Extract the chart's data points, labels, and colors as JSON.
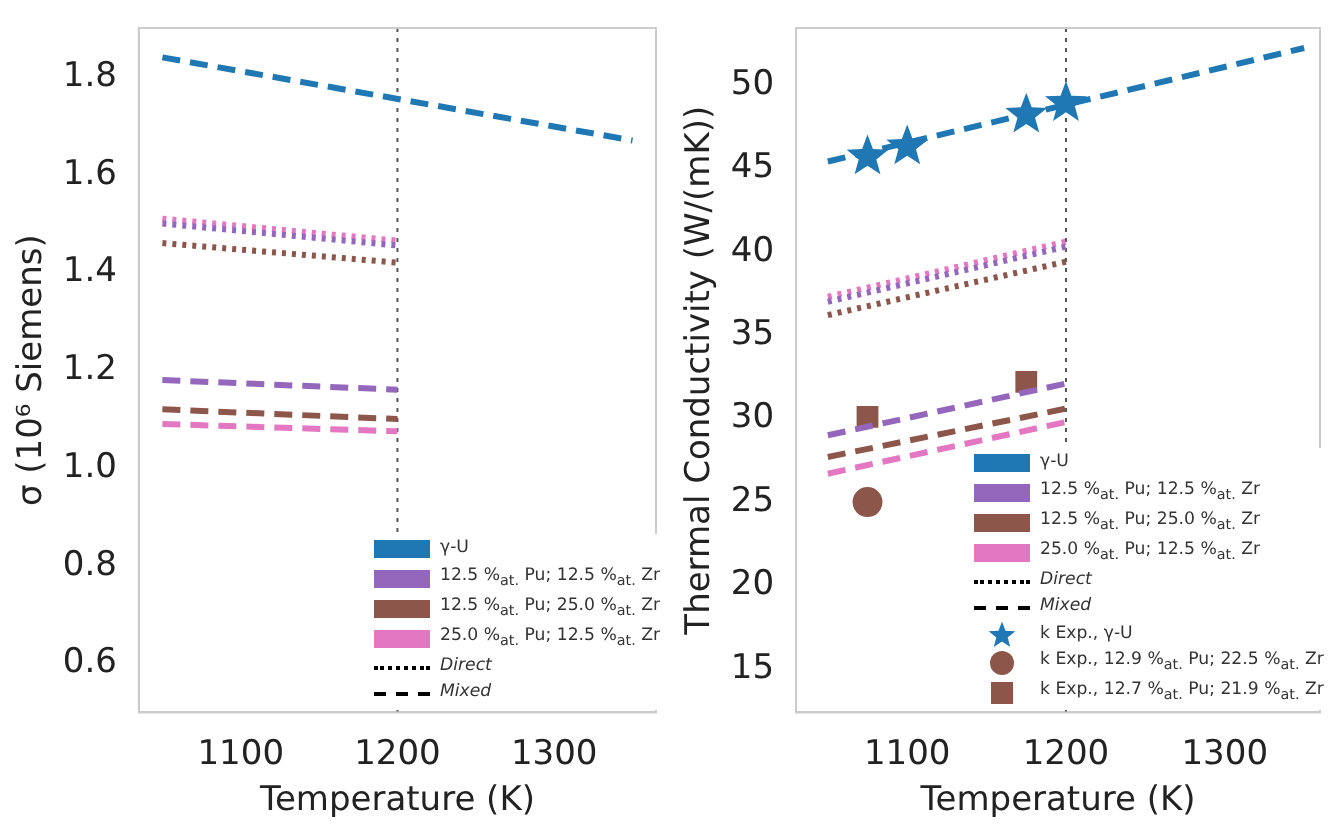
{
  "chart_data": [
    {
      "type": "line",
      "xlabel": "Temperature (K)",
      "ylabel": "σ (10⁶ Siemens)",
      "xlim": [
        1035,
        1365
      ],
      "xticks": [
        1100,
        1200,
        1300
      ],
      "ylim": [
        0.5,
        1.9
      ],
      "yticks": [
        0.6,
        0.8,
        {
          "value": 1,
          "label": "1.0"
        },
        1.2,
        1.4,
        1.6,
        1.8
      ],
      "grid": false,
      "legend": "bottom right",
      "annotations": [
        "Direct",
        "Mixed"
      ],
      "ref_lines": [
        {
          "axis": "x",
          "value": 1200,
          "color": "#555555",
          "line_style": "dotted"
        }
      ],
      "series": [
        {
          "color": "#9467bd",
          "line_style": "dotted",
          "x": [
            1050,
            1200
          ],
          "values": [
            1.5,
            1.455
          ]
        },
        {
          "color": "#8c564b",
          "line_style": "dotted",
          "x": [
            1050,
            1200
          ],
          "values": [
            1.46,
            1.42
          ]
        },
        {
          "color": "#e377c2",
          "line_style": "dotted",
          "x": [
            1050,
            1200
          ],
          "values": [
            1.51,
            1.465
          ]
        },
        {
          "name": "γ-U",
          "color": "#1f77b4",
          "line_style": "dashed",
          "x": [
            1050,
            1350
          ],
          "values": [
            1.84,
            1.67
          ]
        },
        {
          "name": "12.5 %$_{at.}$ Pu; 12.5 %$_{at.}$ Zr",
          "color": "#9467bd",
          "line_style": "dashed",
          "x": [
            1050,
            1200
          ],
          "values": [
            1.18,
            1.16
          ]
        },
        {
          "name": "12.5 %$_{at.}$ Pu; 25.0 %$_{at.}$ Zr",
          "color": "#8c564b",
          "line_style": "dashed",
          "x": [
            1050,
            1200
          ],
          "values": [
            1.12,
            1.1
          ]
        },
        {
          "name": "25.0 %$_{at.}$ Pu; 12.5 %$_{at.}$ Zr",
          "color": "#e377c2",
          "line_style": "dashed",
          "x": [
            1050,
            1200
          ],
          "values": [
            1.09,
            1.075
          ]
        }
      ]
    },
    {
      "type": "line",
      "xlabel": "Temperature (K)",
      "ylabel": "Thermal Conductivity (W/(mK))",
      "xlim": [
        1030,
        1360
      ],
      "xticks": [
        1100,
        1200,
        1300
      ],
      "ylim": [
        12.4,
        53.4
      ],
      "yticks": [
        15,
        20,
        25,
        30,
        35,
        40,
        45,
        50
      ],
      "grid": false,
      "legend": "bottom right",
      "annotations": [
        "Direct",
        "Mixed"
      ],
      "ref_lines": [
        {
          "axis": "x",
          "value": 1200,
          "color": "#555555",
          "line_style": "dotted"
        }
      ],
      "series": [
        {
          "color": "#9467bd",
          "line_style": "dotted",
          "x": [
            1050,
            1200
          ],
          "values": [
            37.0,
            40.3
          ]
        },
        {
          "color": "#8c564b",
          "line_style": "dotted",
          "x": [
            1050,
            1200
          ],
          "values": [
            36.2,
            39.4
          ]
        },
        {
          "color": "#e377c2",
          "line_style": "dotted",
          "x": [
            1050,
            1200
          ],
          "values": [
            37.3,
            40.6
          ]
        },
        {
          "name": "γ-U",
          "color": "#1f77b4",
          "line_style": "dashed",
          "x": [
            1050,
            1350
          ],
          "values": [
            45.4,
            52.2
          ]
        },
        {
          "name": "12.5 %$_{at.}$ Pu; 12.5 %$_{at.}$ Zr",
          "color": "#9467bd",
          "line_style": "dashed",
          "x": [
            1050,
            1200
          ],
          "values": [
            29.0,
            32.1
          ]
        },
        {
          "name": "12.5 %$_{at.}$ Pu; 25.0 %$_{at.}$ Zr",
          "color": "#8c564b",
          "line_style": "dashed",
          "x": [
            1050,
            1200
          ],
          "values": [
            27.7,
            30.6
          ]
        },
        {
          "name": "25.0 %$_{at.}$ Pu; 12.5 %$_{at.}$ Zr",
          "color": "#e377c2",
          "line_style": "dashed",
          "x": [
            1050,
            1200
          ],
          "values": [
            26.7,
            29.8
          ]
        },
        {
          "type": "scatter",
          "name": "k Exp., γ-U",
          "color": "#1f77b4",
          "marker": "star",
          "x": [
            1075,
            1100,
            1175,
            1200
          ],
          "values": [
            45.7,
            46.3,
            48.2,
            48.9
          ]
        },
        {
          "type": "scatter",
          "name": "k Exp., 12.9 %$_{at.}$ Pu; 22.5 %$_{at.}$ Zr",
          "color": "#8c564b",
          "marker": "circle",
          "x": [
            1075
          ],
          "values": [
            25.0
          ]
        },
        {
          "type": "scatter",
          "name": "k Exp., 12.7 %$_{at.}$ Pu; 21.9 %$_{at.}$ Zr",
          "color": "#8c564b",
          "marker": "square",
          "x": [
            1075,
            1175
          ],
          "values": [
            30.1,
            32.2
          ]
        }
      ]
    }
  ]
}
